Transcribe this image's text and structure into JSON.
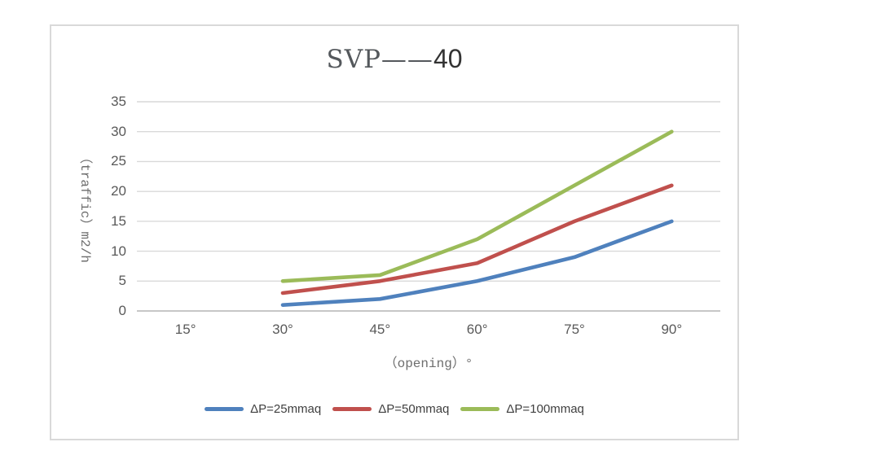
{
  "chart_data": {
    "type": "line",
    "title": "SVP——40",
    "title_serif_part": "SVP——",
    "title_number_part": "40",
    "categories": [
      "15°",
      "30°",
      "45°",
      "60°",
      "75°",
      "90°"
    ],
    "series": [
      {
        "name": "ΔP=25mmaq",
        "color": "#4F81BD",
        "values": [
          null,
          1,
          2,
          5,
          9,
          15
        ]
      },
      {
        "name": "ΔP=50mmaq",
        "color": "#C0504D",
        "values": [
          null,
          3,
          5,
          8,
          15,
          21
        ]
      },
      {
        "name": "ΔP=100mmaq",
        "color": "#9BBB59",
        "values": [
          null,
          5,
          6,
          12,
          21,
          30
        ]
      }
    ],
    "xlabel": "（opening）°",
    "ylabel": "（traffic）m2/h",
    "ylim": [
      0,
      35
    ],
    "yticks": [
      0,
      5,
      10,
      15,
      20,
      25,
      30,
      35
    ],
    "grid": true,
    "legend_position": "bottom",
    "style": {
      "gridline_color": "#D9D9D9",
      "axisline_color": "#BFBFBF",
      "tick_label_color": "#595959",
      "legend_text_color": "#3f3f3f",
      "chart_border_color": "#D9D9D9",
      "background_color": "#ffffff"
    }
  }
}
